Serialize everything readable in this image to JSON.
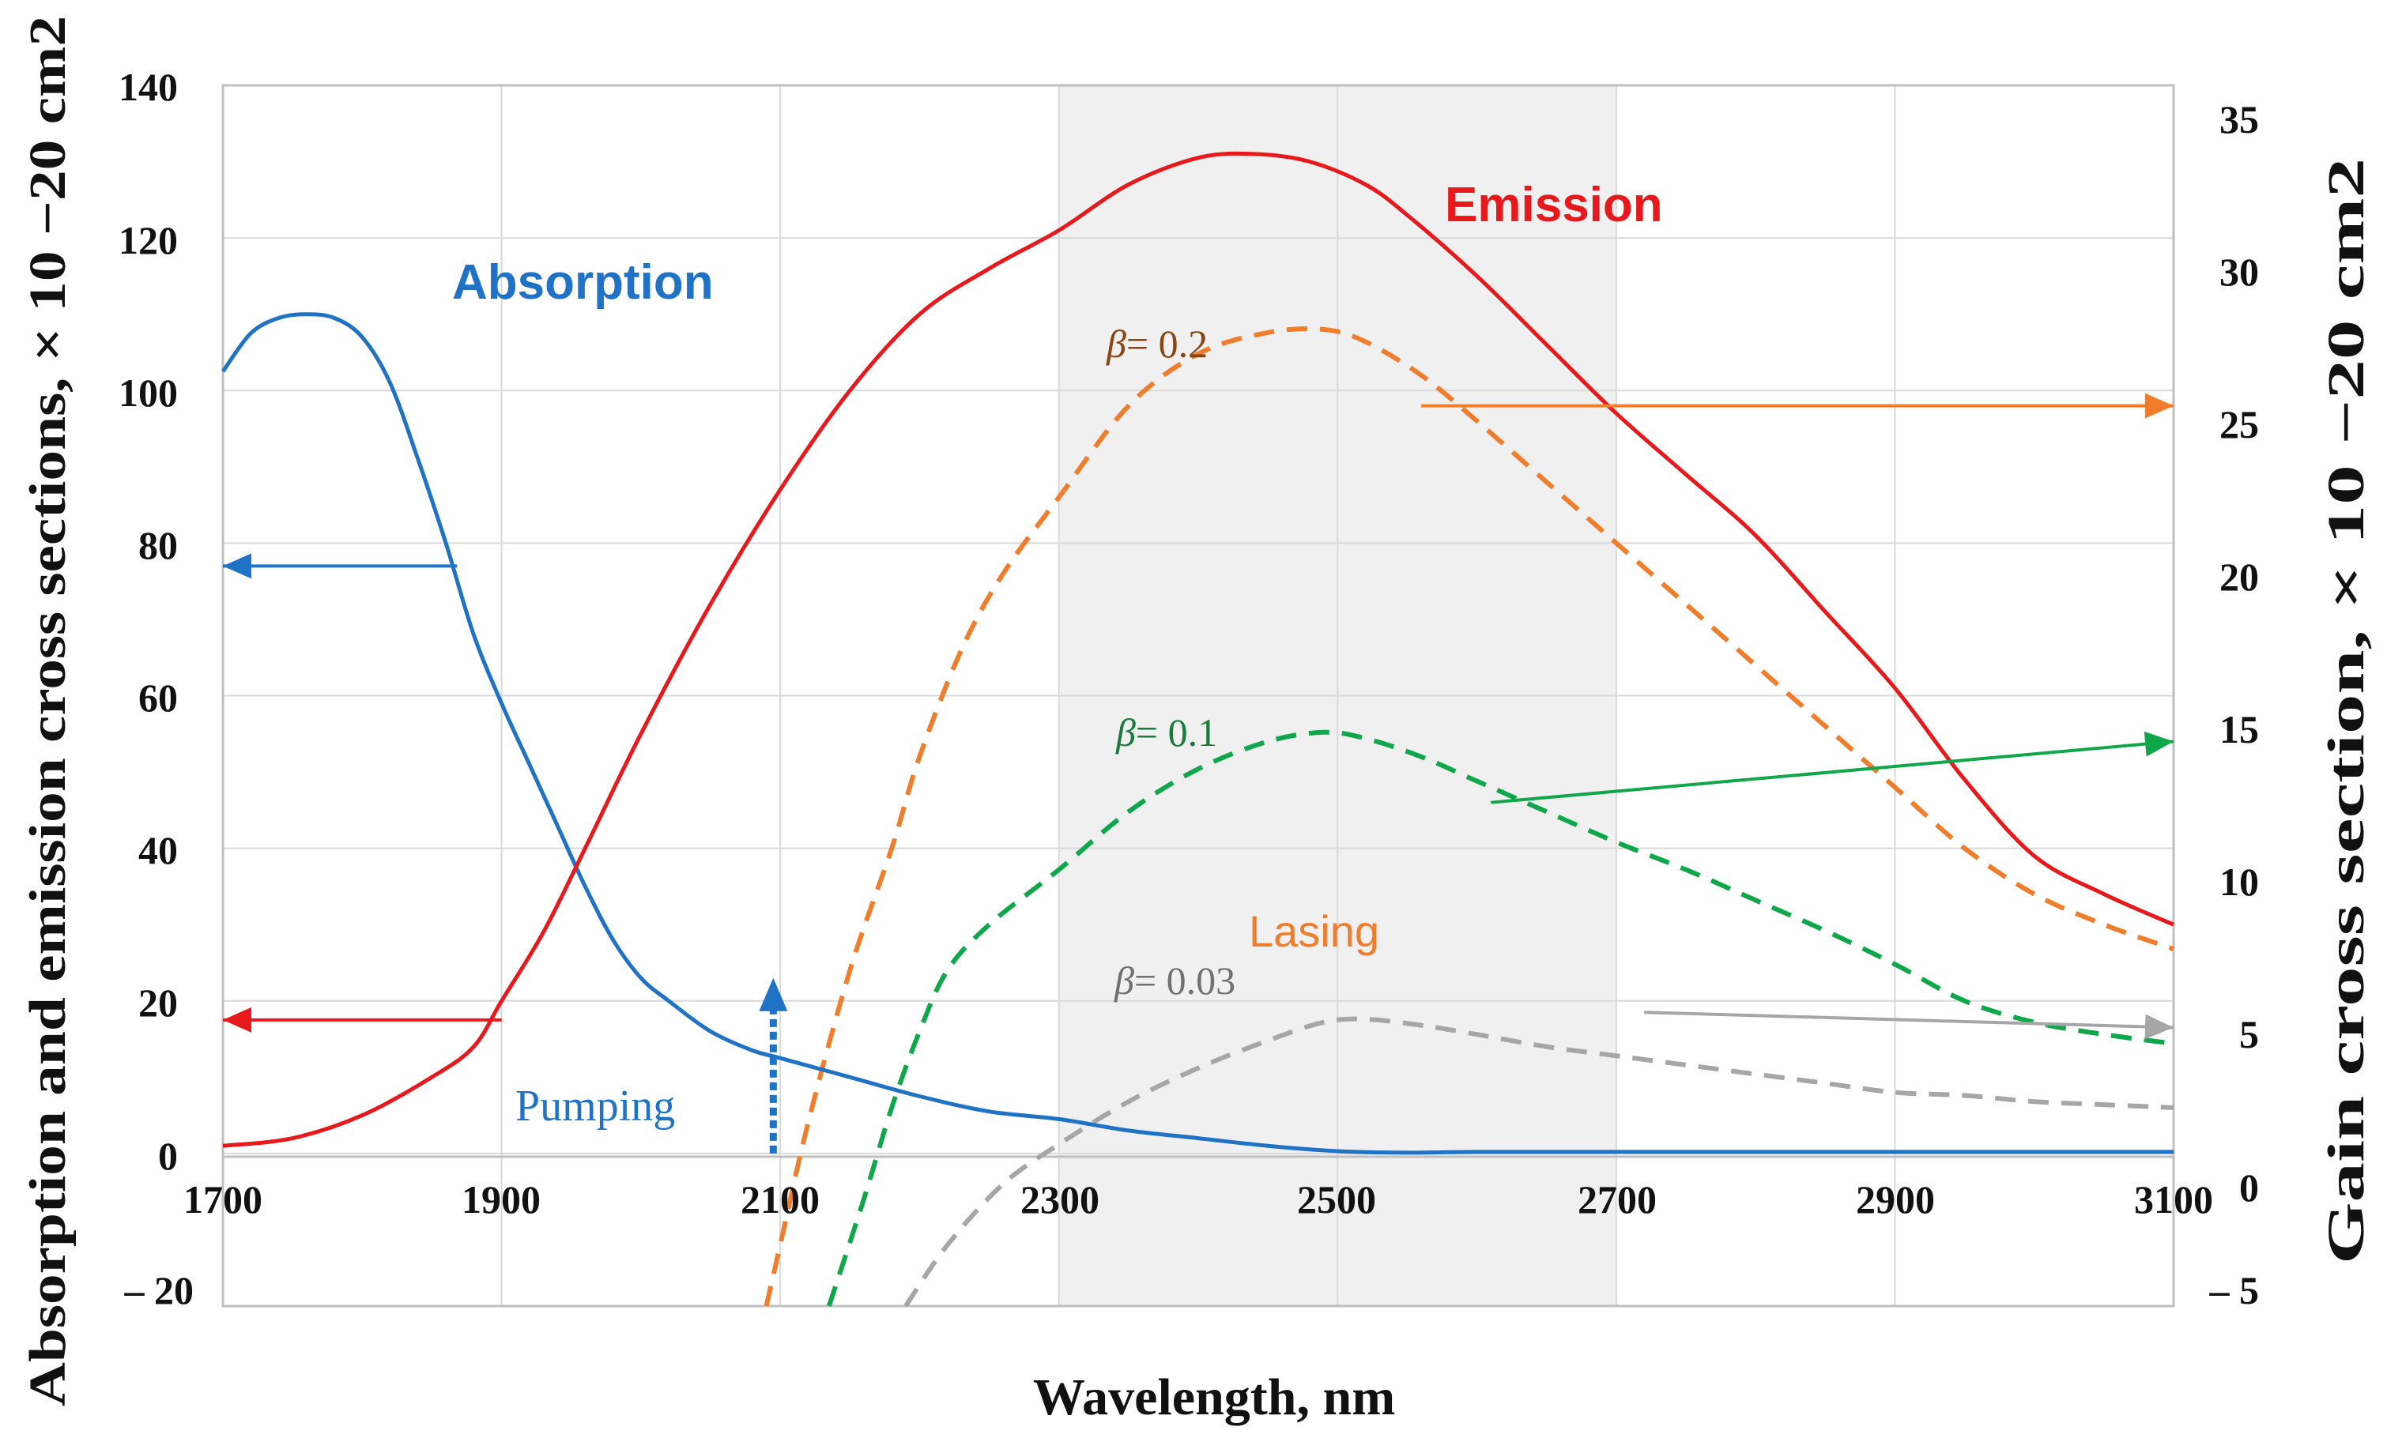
{
  "chart_data": {
    "type": "line",
    "xlabel": "Wavelength, nm",
    "ylabel_left": "Absorption and emission cross sections, × 10 −20 cm2",
    "ylabel_right": "Gain cross section, × 10 −20 cm2",
    "xlim": [
      1700,
      3100
    ],
    "ylim_left": [
      -20,
      140
    ],
    "ylim_right": [
      -5,
      35
    ],
    "x_ticks": [
      "1700",
      "1900",
      "2100",
      "2300",
      "2500",
      "2700",
      "2900",
      "3100"
    ],
    "y_left_ticks": [
      "140",
      "120",
      "100",
      "80",
      "60",
      "40",
      "20",
      "0",
      "– 20"
    ],
    "y_right_ticks": [
      "35",
      "30",
      "25",
      "20",
      "15",
      "10",
      "5",
      "0",
      "– 5"
    ],
    "grid": true,
    "shaded_region": {
      "x_start": 2300,
      "x_end": 2700,
      "label": "Lasing"
    },
    "series": [
      {
        "name": "Absorption",
        "axis": "left",
        "color": "#1f72c4",
        "style": "solid",
        "x": [
          1700,
          1720,
          1740,
          1760,
          1780,
          1800,
          1820,
          1840,
          1860,
          1880,
          1900,
          1920,
          1940,
          1960,
          1980,
          2000,
          2020,
          2050,
          2080,
          2100,
          2150,
          2200,
          2250,
          2300,
          2350,
          2400,
          2450,
          2500,
          2550,
          2600,
          2700,
          2800,
          2900,
          3000,
          3100
        ],
        "y": [
          102.5,
          107.5,
          109.5,
          110,
          109.5,
          107,
          101,
          91,
          80,
          68,
          59,
          51,
          43,
          35,
          28,
          23,
          20,
          16,
          13.5,
          12.5,
          10,
          7.5,
          5.5,
          4.5,
          3,
          2,
          1,
          0.3,
          0.1,
          0.2,
          0.2,
          0.2,
          0.2,
          0.2,
          0.2
        ]
      },
      {
        "name": "Emission",
        "axis": "left",
        "color": "#e8191c",
        "style": "solid",
        "x": [
          1700,
          1750,
          1800,
          1850,
          1880,
          1900,
          1930,
          1960,
          2000,
          2050,
          2100,
          2150,
          2200,
          2250,
          2300,
          2350,
          2400,
          2440,
          2480,
          2520,
          2550,
          2600,
          2650,
          2700,
          2750,
          2800,
          2850,
          2900,
          2950,
          3000,
          3050,
          3100
        ],
        "y": [
          1,
          2,
          5,
          10,
          14,
          20,
          29,
          40,
          55,
          72,
          87,
          100,
          110,
          116,
          121,
          127,
          130.5,
          131,
          130,
          127,
          123,
          115,
          106,
          97,
          89,
          81,
          71,
          61,
          49,
          39,
          34,
          30
        ]
      },
      {
        "name": "β= 0.2",
        "axis": "right",
        "color": "#f07d2c",
        "style": "dashed",
        "x": [
          2090,
          2100,
          2120,
          2150,
          2180,
          2200,
          2230,
          2260,
          2300,
          2350,
          2400,
          2450,
          2490,
          2520,
          2560,
          2600,
          2650,
          2700,
          2750,
          2800,
          2850,
          2900,
          2950,
          3000,
          3050,
          3100
        ],
        "y": [
          -5,
          -3,
          1,
          6,
          10,
          13,
          16.5,
          19,
          21.5,
          24.5,
          26.2,
          26.9,
          27,
          26.6,
          25.5,
          24,
          22,
          20,
          18,
          16,
          14,
          12,
          10,
          8.5,
          7.5,
          6.7
        ]
      },
      {
        "name": "β= 0.1",
        "axis": "right",
        "color": "#10a64a",
        "style": "dashed",
        "x": [
          2135,
          2160,
          2180,
          2200,
          2220,
          2250,
          2300,
          2350,
          2400,
          2450,
          2490,
          2520,
          2560,
          2600,
          2650,
          2700,
          2750,
          2800,
          2850,
          2900,
          2950,
          3000,
          3050,
          3100
        ],
        "y": [
          -5,
          -1.5,
          1.5,
          4,
          6,
          7.5,
          9.3,
          11.2,
          12.6,
          13.5,
          13.8,
          13.6,
          13,
          12.2,
          11.2,
          10.2,
          9.3,
          8.3,
          7.3,
          6.2,
          5,
          4.3,
          3.9,
          3.6
        ]
      },
      {
        "name": "β= 0.03",
        "axis": "right",
        "color": "#a6a6a6",
        "style": "dashed",
        "x": [
          2190,
          2220,
          2260,
          2300,
          2350,
          2400,
          2450,
          2490,
          2520,
          2560,
          2600,
          2650,
          2700,
          2750,
          2800,
          2850,
          2900,
          2950,
          3000,
          3050,
          3100
        ],
        "y": [
          -5,
          -3,
          -1,
          0.3,
          1.7,
          2.8,
          3.7,
          4.3,
          4.4,
          4.2,
          3.9,
          3.5,
          3.2,
          2.9,
          2.6,
          2.3,
          2,
          1.9,
          1.7,
          1.6,
          1.5
        ]
      }
    ],
    "annotations": [
      {
        "text": "Absorption",
        "color": "#1f72c4",
        "at_x": 2000,
        "at_y_left": 114
      },
      {
        "text": "Emission",
        "color": "#e8191c",
        "at_x": 2585,
        "at_y_left": 124
      },
      {
        "text": "Lasing",
        "color": "#f07d2c",
        "at_x": 2500,
        "at_y_left": 29
      },
      {
        "text": "Pumping",
        "color": "#1f72c4",
        "at_x": 2010,
        "at_y_left": 5
      },
      {
        "beta": "β",
        "value": "= 0.2",
        "color": "#8b4513",
        "at_x": 2310,
        "at_y_left": 105
      },
      {
        "beta": "β",
        "value": "= 0.1",
        "color": "#1a7a3c",
        "at_x": 2320,
        "at_y_left": 54
      },
      {
        "beta": "β",
        "value": "= 0.03",
        "color": "#707070",
        "at_x": 2315,
        "at_y_left": 16.5
      }
    ],
    "arrows": [
      {
        "color": "#1f72c4",
        "from": [
          1868,
          77
        ],
        "to": [
          1700,
          77
        ],
        "axis": "left"
      },
      {
        "color": "#e8191c",
        "from": [
          1900,
          17.5
        ],
        "to": [
          1700,
          17.5
        ],
        "axis": "left"
      },
      {
        "color": "#f07d2c",
        "from": [
          2560,
          98
        ],
        "to": [
          3100,
          98
        ],
        "axis": "left"
      },
      {
        "color": "#10a64a",
        "from": [
          2610,
          46
        ],
        "to": [
          3100,
          54
        ],
        "axis": "left"
      },
      {
        "color": "#a6a6a6",
        "from": [
          2720,
          18.5
        ],
        "to": [
          3100,
          16.5
        ],
        "axis": "left"
      },
      {
        "color": "#1f72c4",
        "from": [
          2095,
          0
        ],
        "to": [
          2095,
          23
        ],
        "axis": "left",
        "style": "pumping"
      }
    ]
  }
}
